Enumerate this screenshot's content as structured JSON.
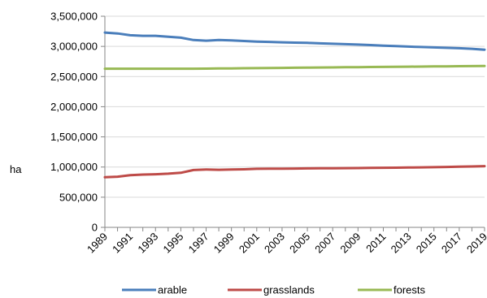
{
  "chart_data": {
    "type": "line",
    "title": "",
    "xlabel": "",
    "ylabel": "ha",
    "ylim": [
      0,
      3500000
    ],
    "xlim": [
      1989,
      2019
    ],
    "yticks": [
      "0",
      "500,000",
      "1,000,000",
      "1,500,000",
      "2,000,000",
      "2,500,000",
      "3,000,000",
      "3,500,000"
    ],
    "ytick_values": [
      0,
      500000,
      1000000,
      1500000,
      2000000,
      2500000,
      3000000,
      3500000
    ],
    "xtick_labels": [
      "1989",
      "1991",
      "1993",
      "1995",
      "1997",
      "1999",
      "2001",
      "2003",
      "2005",
      "2007",
      "2009",
      "2011",
      "2013",
      "2015",
      "2017",
      "2019"
    ],
    "x": [
      1989,
      1990,
      1991,
      1992,
      1993,
      1994,
      1995,
      1996,
      1997,
      1998,
      1999,
      2000,
      2001,
      2002,
      2003,
      2004,
      2005,
      2006,
      2007,
      2008,
      2009,
      2010,
      2011,
      2012,
      2013,
      2014,
      2015,
      2016,
      2017,
      2018,
      2019
    ],
    "legend_position": "bottom",
    "grid": "horizontal",
    "series": [
      {
        "name": "arable",
        "color": "#4a7ebb",
        "values": [
          3230000,
          3215000,
          3185000,
          3175000,
          3175000,
          3160000,
          3145000,
          3105000,
          3095000,
          3105000,
          3100000,
          3090000,
          3080000,
          3075000,
          3068000,
          3063000,
          3058000,
          3050000,
          3043000,
          3037000,
          3030000,
          3022000,
          3013000,
          3005000,
          2997000,
          2990000,
          2983000,
          2977000,
          2970000,
          2960000,
          2945000
        ]
      },
      {
        "name": "grasslands",
        "color": "#be4b48",
        "values": [
          830000,
          840000,
          865000,
          875000,
          880000,
          890000,
          905000,
          950000,
          960000,
          955000,
          958000,
          963000,
          970000,
          972000,
          973000,
          975000,
          977000,
          978000,
          980000,
          982000,
          983000,
          986000,
          988000,
          990000,
          992000,
          995000,
          998000,
          1001000,
          1005000,
          1010000,
          1015000
        ]
      },
      {
        "name": "forests",
        "color": "#98b954",
        "values": [
          2630000,
          2630000,
          2630000,
          2630000,
          2630000,
          2630000,
          2630000,
          2630000,
          2632000,
          2634000,
          2636000,
          2638000,
          2640000,
          2642000,
          2644000,
          2646000,
          2648000,
          2650000,
          2652000,
          2654000,
          2656000,
          2658000,
          2660000,
          2662000,
          2664000,
          2666000,
          2668000,
          2670000,
          2672000,
          2674000,
          2676000
        ]
      }
    ]
  }
}
